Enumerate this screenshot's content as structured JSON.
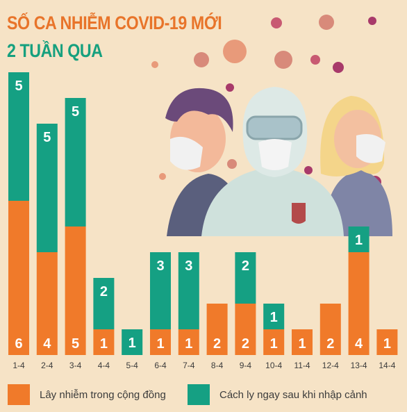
{
  "header": {
    "title_line1": "SỐ CA NHIỄM COVID-19 MỚI",
    "title_line2": "2 TUẦN QUA"
  },
  "colors": {
    "background": "#f6e3c6",
    "community": "#f07a2a",
    "quarantine": "#15a083",
    "title_orange": "#e8742a",
    "title_green": "#16a07e",
    "virus": "#c8596a"
  },
  "illustration": {
    "people": [
      "man-with-mask",
      "healthcare-worker-in-protective-suit",
      "woman-with-mask"
    ],
    "icons": [
      "coronavirus-icon"
    ]
  },
  "chart_data": {
    "type": "bar",
    "stacked": true,
    "categories": [
      "1-4",
      "2-4",
      "3-4",
      "4-4",
      "5-4",
      "6-4",
      "7-4",
      "8-4",
      "9-4",
      "10-4",
      "11-4",
      "12-4",
      "13-4",
      "14-4"
    ],
    "series": [
      {
        "name": "Lây nhiễm trong cộng đồng",
        "color": "#f07a2a",
        "values": [
          6,
          4,
          5,
          1,
          0,
          1,
          1,
          2,
          2,
          1,
          1,
          2,
          4,
          1
        ]
      },
      {
        "name": "Cách ly ngay sau khi nhập cảnh",
        "color": "#15a083",
        "values": [
          5,
          5,
          5,
          2,
          1,
          3,
          3,
          0,
          2,
          1,
          0,
          0,
          1,
          0
        ]
      }
    ],
    "data_labels": true,
    "ylim": [
      0,
      11
    ],
    "legend_position": "bottom"
  }
}
